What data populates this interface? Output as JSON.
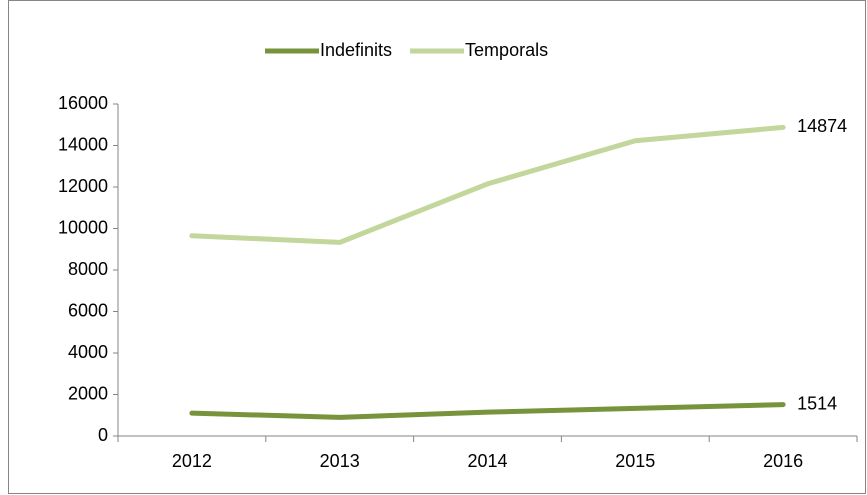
{
  "chart_data": {
    "type": "line",
    "categories": [
      "2012",
      "2013",
      "2014",
      "2015",
      "2016"
    ],
    "series": [
      {
        "name": "Indefinits",
        "color": "#77933c",
        "values": [
          1100,
          900,
          1150,
          1330,
          1514
        ]
      },
      {
        "name": "Temporals",
        "color": "#c3d69b",
        "values": [
          9650,
          9330,
          12150,
          14230,
          14874
        ]
      }
    ],
    "ylim": [
      0,
      16000
    ],
    "yticks": [
      0,
      2000,
      4000,
      6000,
      8000,
      10000,
      12000,
      14000,
      16000
    ],
    "grid": false,
    "legend": "top"
  }
}
